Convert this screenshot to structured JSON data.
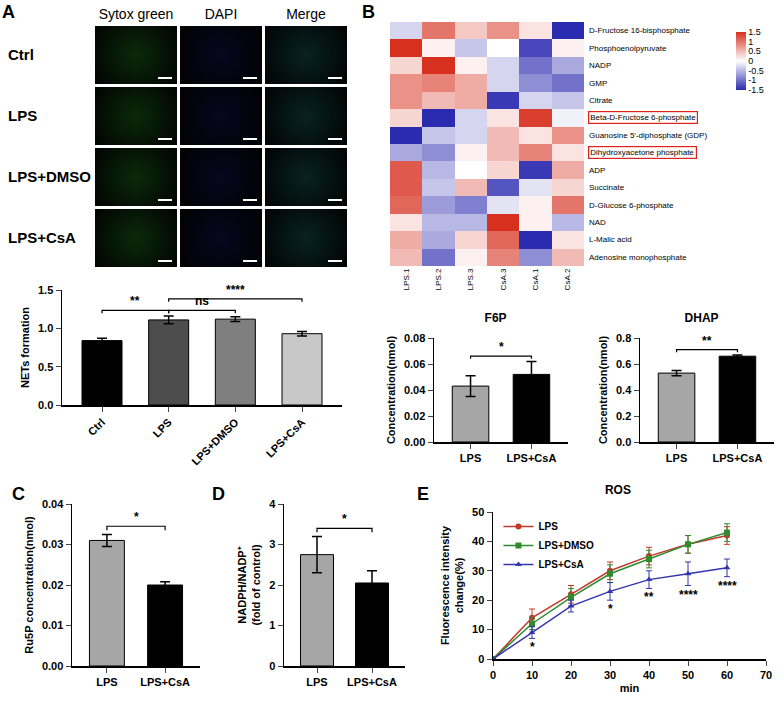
{
  "chart_data": [
    {
      "panel": "A",
      "type": "image_grid",
      "columns": [
        "Sytox green",
        "DAPI",
        "Merge"
      ],
      "rows": [
        "Ctrl",
        "LPS",
        "LPS+DMSO",
        "LPS+CsA"
      ]
    },
    {
      "type": "bar",
      "categories": [
        "Ctrl",
        "LPS",
        "LPS+DMSO",
        "LPS+CsA"
      ],
      "values": [
        0.84,
        1.11,
        1.12,
        0.93
      ],
      "errors": [
        0.03,
        0.05,
        0.03,
        0.03
      ],
      "colors": [
        "#000000",
        "#4d4d4d",
        "#7f7f7f",
        "#c8c8c8"
      ],
      "ylabel": "NETs formation",
      "ylim": [
        0,
        1.5
      ],
      "yticks": [
        {
          "value": 0,
          "label": "0.0"
        },
        {
          "value": 0.5,
          "label": "0.5"
        },
        {
          "value": 1,
          "label": "1.0"
        },
        {
          "value": 1.5,
          "label": "1.5"
        }
      ],
      "comparisons": [
        {
          "from": "Ctrl",
          "to": "LPS",
          "label": "**"
        },
        {
          "from": "LPS",
          "to": "LPS+DMSO",
          "label": "ns"
        },
        {
          "from": "LPS",
          "to": "LPS+CsA",
          "label": "****"
        }
      ]
    },
    {
      "panel": "B",
      "type": "heatmap",
      "columns": [
        "LPS.1",
        "LPS.2",
        "LPS.3",
        "CsA.3",
        "CsA.1",
        "CsA.2"
      ],
      "rows": [
        "D-Fructose 16-bisphosphate",
        "Phosphoenolpyruvate",
        "NADP",
        "GMP",
        "Citrate",
        "Beta-D-Fructose 6-phosphate",
        "Guanosine 5'-diphosphate (GDP)",
        "Dihydroxyacetone phosphate",
        "ADP",
        "Succinate",
        "D-Glucose 6-phosphate",
        "NAD",
        "L-Malic acid",
        "Adenosine monophosphate"
      ],
      "cells": [
        [
          -0.3,
          1.0,
          0.4,
          0.8,
          0.2,
          -1.6
        ],
        [
          1.5,
          0.1,
          -0.4,
          0.0,
          -1.3,
          0.1
        ],
        [
          0.3,
          1.6,
          0.1,
          -0.3,
          -1.0,
          -0.6
        ],
        [
          0.8,
          0.9,
          0.6,
          -0.3,
          -0.8,
          -1.0
        ],
        [
          0.8,
          0.5,
          0.6,
          -1.4,
          -0.3,
          -0.4
        ],
        [
          0.3,
          -1.6,
          -0.3,
          0.2,
          1.4,
          -0.1
        ],
        [
          -1.6,
          -0.4,
          -0.3,
          0.5,
          0.2,
          0.8
        ],
        [
          -0.6,
          -0.8,
          0.1,
          0.5,
          0.9,
          0.2
        ],
        [
          1.2,
          -0.5,
          0.0,
          0.3,
          -1.4,
          0.6
        ],
        [
          1.2,
          -0.4,
          0.5,
          -1.2,
          -0.2,
          0.3
        ],
        [
          1.1,
          -0.7,
          -0.9,
          -0.2,
          0.1,
          1.0
        ],
        [
          0.2,
          -0.5,
          -0.5,
          1.5,
          0.1,
          -0.5
        ],
        [
          0.6,
          -0.6,
          0.3,
          1.1,
          -1.5,
          0.2
        ],
        [
          0.5,
          -1.0,
          0.1,
          0.9,
          -0.8,
          0.5
        ]
      ],
      "colorbar": {
        "range": [
          -1.5,
          1.5
        ],
        "ticks": [
          1.5,
          1,
          0.5,
          0,
          -0.5,
          -1,
          -1.5
        ]
      },
      "highlight": [
        "Beta-D-Fructose 6-phosphate",
        "Dihydroxyacetone phosphate"
      ]
    },
    {
      "type": "bar",
      "title": "F6P",
      "categories": [
        "LPS",
        "LPS+CsA"
      ],
      "values": [
        0.043,
        0.052
      ],
      "errors": [
        0.008,
        0.01
      ],
      "colors": [
        "#a6a6a6",
        "#000000"
      ],
      "ylabel": "Concentration(nmol)",
      "ylim": [
        0,
        0.08
      ],
      "yticks": [
        {
          "value": 0,
          "label": "0.00"
        },
        {
          "value": 0.02,
          "label": "0.02"
        },
        {
          "value": 0.04,
          "label": "0.04"
        },
        {
          "value": 0.06,
          "label": "0.06"
        },
        {
          "value": 0.08,
          "label": "0.08"
        }
      ],
      "comparisons": [
        {
          "from": "LPS",
          "to": "LPS+CsA",
          "label": "*"
        }
      ]
    },
    {
      "type": "bar",
      "title": "DHAP",
      "categories": [
        "LPS",
        "LPS+CsA"
      ],
      "values": [
        0.53,
        0.66
      ],
      "errors": [
        0.02,
        0.01
      ],
      "colors": [
        "#a6a6a6",
        "#000000"
      ],
      "ylabel": "Concentration(nmol)",
      "ylim": [
        0,
        0.8
      ],
      "yticks": [
        {
          "value": 0,
          "label": "0.0"
        },
        {
          "value": 0.2,
          "label": "0.2"
        },
        {
          "value": 0.4,
          "label": "0.4"
        },
        {
          "value": 0.6,
          "label": "0.6"
        },
        {
          "value": 0.8,
          "label": "0.8"
        }
      ],
      "comparisons": [
        {
          "from": "LPS",
          "to": "LPS+CsA",
          "label": "**"
        }
      ]
    },
    {
      "panel": "C",
      "type": "bar",
      "categories": [
        "LPS",
        "LPS+CsA"
      ],
      "values": [
        0.031,
        0.02
      ],
      "errors": [
        0.0015,
        0.0008
      ],
      "colors": [
        "#a6a6a6",
        "#000000"
      ],
      "ylabel": "Ru5P concentration(nmol)",
      "ylim": [
        0,
        0.04
      ],
      "yticks": [
        {
          "value": 0,
          "label": "0.00"
        },
        {
          "value": 0.01,
          "label": "0.01"
        },
        {
          "value": 0.02,
          "label": "0.02"
        },
        {
          "value": 0.03,
          "label": "0.03"
        },
        {
          "value": 0.04,
          "label": "0.04"
        }
      ],
      "comparisons": [
        {
          "from": "LPS",
          "to": "LPS+CsA",
          "label": "*"
        }
      ]
    },
    {
      "panel": "D",
      "type": "bar",
      "categories": [
        "LPS",
        "LPS+CsA"
      ],
      "values": [
        2.75,
        2.05
      ],
      "errors": [
        0.45,
        0.3
      ],
      "colors": [
        "#a6a6a6",
        "#000000"
      ],
      "ylabel": [
        "NADPH/NADP⁺",
        "(fold of control)"
      ],
      "ylim": [
        0,
        4
      ],
      "yticks": [
        0,
        1,
        2,
        3,
        4
      ],
      "comparisons": [
        {
          "from": "LPS",
          "to": "LPS+CsA",
          "label": "*"
        }
      ]
    },
    {
      "panel": "E",
      "type": "line",
      "title": "ROS",
      "x": [
        0,
        10,
        20,
        30,
        40,
        50,
        60
      ],
      "xlabel": "min",
      "ylabel": [
        "Fluorescence intensity",
        "change(%)"
      ],
      "xlim": [
        0,
        70
      ],
      "xticks": [
        0,
        10,
        20,
        30,
        40,
        50,
        60,
        70
      ],
      "ylim": [
        0,
        50
      ],
      "yticks": [
        0,
        10,
        20,
        30,
        40,
        50
      ],
      "legend": "upper left",
      "series": [
        {
          "name": "LPS",
          "color": "#c0392b",
          "marker": "circle",
          "values": [
            0,
            14,
            22,
            30,
            35,
            39,
            42
          ],
          "errors": [
            0,
            3,
            3,
            3,
            3,
            3,
            3
          ]
        },
        {
          "name": "LPS+DMSO",
          "color": "#2e8b2e",
          "marker": "square",
          "values": [
            0,
            12,
            21,
            29,
            34,
            39,
            43
          ],
          "errors": [
            0,
            2,
            3,
            3,
            3,
            3,
            3
          ]
        },
        {
          "name": "LPS+CsA",
          "color": "#3535b0",
          "marker": "triangle-up",
          "values": [
            0,
            9,
            18,
            23,
            27,
            29,
            31
          ],
          "errors": [
            0,
            2,
            2,
            3,
            3,
            4,
            3
          ],
          "annotations": [
            {
              "x": 10,
              "label": "*"
            },
            {
              "x": 30,
              "label": "*"
            },
            {
              "x": 40,
              "label": "**"
            },
            {
              "x": 50,
              "label": "****"
            },
            {
              "x": 60,
              "label": "****"
            }
          ]
        }
      ]
    }
  ]
}
